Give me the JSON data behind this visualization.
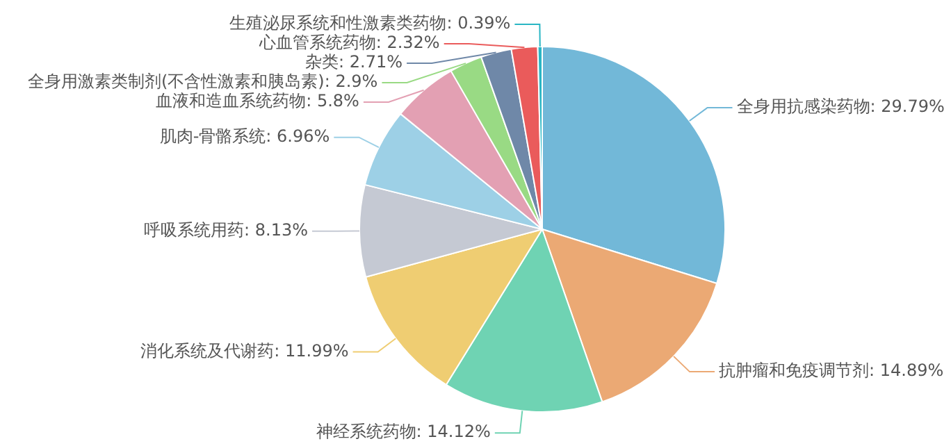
{
  "chart_data": {
    "type": "pie",
    "categories": [
      "全身用抗感染药物",
      "抗肿瘤和免疫调节剂",
      "神经系统药物",
      "消化系统及代谢药",
      "呼吸系统用药",
      "肌肉-骨骼系统",
      "血液和造血系统药物",
      "全身用激素类制剂(不含性激素和胰岛素)",
      "杂类",
      "心血管系统药物",
      "生殖泌尿系统和性激素类药物"
    ],
    "values": [
      29.79,
      14.89,
      14.12,
      11.99,
      8.13,
      6.96,
      5.8,
      2.9,
      2.71,
      2.32,
      0.39
    ],
    "value_labels": [
      "29.79%",
      "14.89%",
      "14.12%",
      "11.99%",
      "8.13%",
      "6.96%",
      "5.8%",
      "2.9%",
      "2.71%",
      "2.32%",
      "0.39%"
    ],
    "colors": [
      "#72b8d8",
      "#eba974",
      "#6fd3b3",
      "#efcd72",
      "#c5c9d3",
      "#9dd0e6",
      "#e3a0b3",
      "#99da84",
      "#6f88a8",
      "#ea5b5b",
      "#2ab6c4"
    ],
    "legend": false
  }
}
